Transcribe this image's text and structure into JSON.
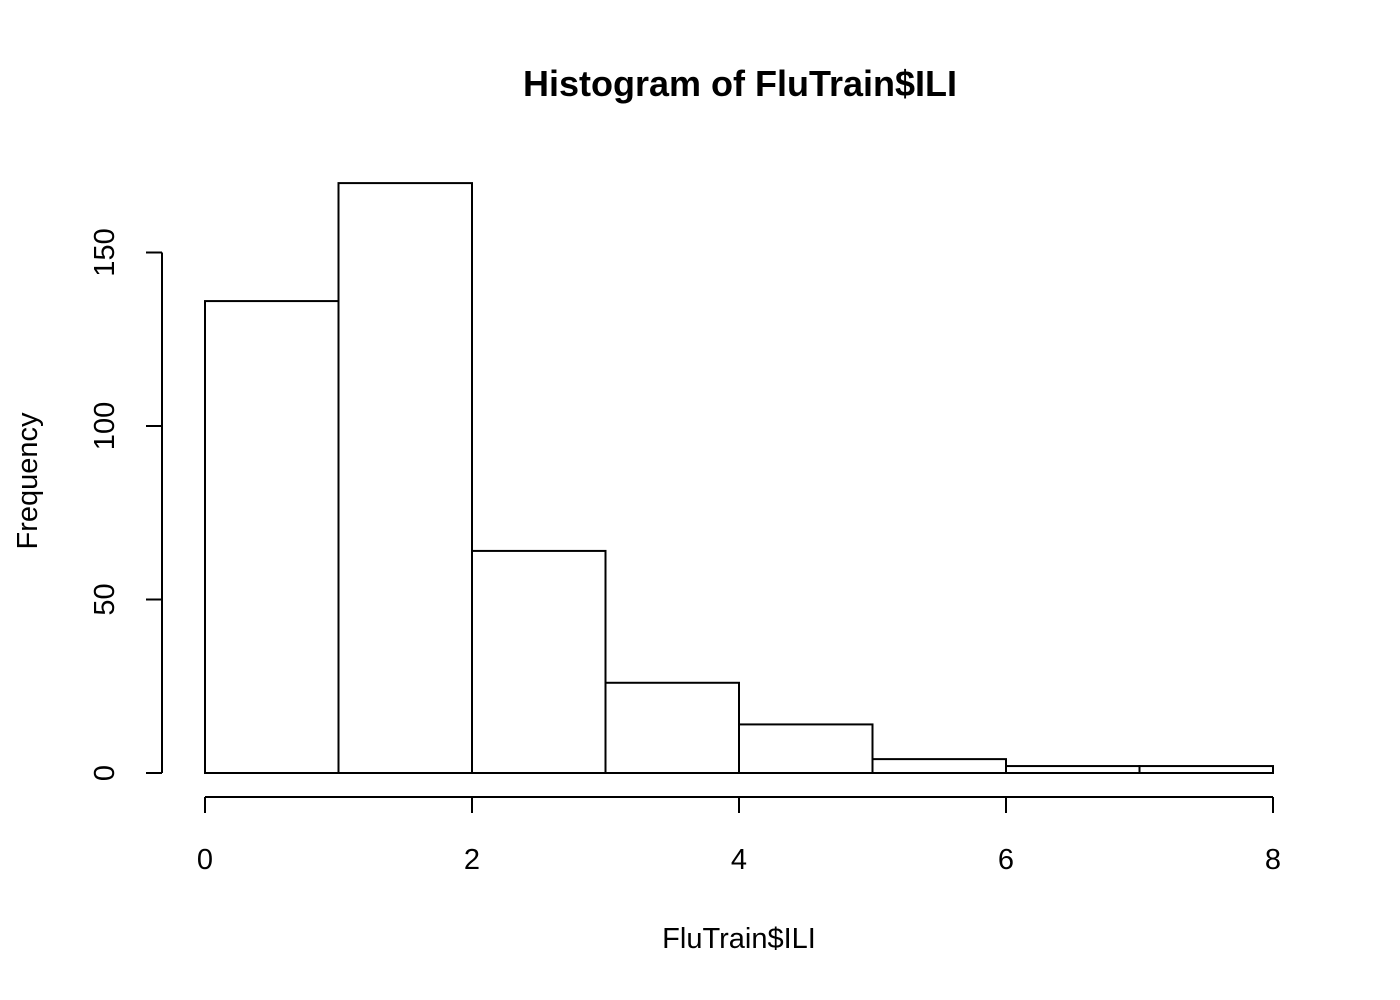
{
  "chart_data": {
    "type": "bar",
    "title": "Histogram of FluTrain$ILI",
    "xlabel": "FluTrain$ILI",
    "ylabel": "Frequency",
    "bins": [
      {
        "start": 0,
        "end": 1,
        "count": 136
      },
      {
        "start": 1,
        "end": 2,
        "count": 170
      },
      {
        "start": 2,
        "end": 3,
        "count": 64
      },
      {
        "start": 3,
        "end": 4,
        "count": 26
      },
      {
        "start": 4,
        "end": 5,
        "count": 14
      },
      {
        "start": 5,
        "end": 6,
        "count": 4
      },
      {
        "start": 6,
        "end": 7,
        "count": 2
      },
      {
        "start": 7,
        "end": 8,
        "count": 2
      }
    ],
    "xlim": [
      0,
      8
    ],
    "ylim": [
      0,
      170
    ],
    "x_ticks": [
      0,
      2,
      4,
      6,
      8
    ],
    "y_ticks": [
      0,
      50,
      100,
      150
    ],
    "grid": false,
    "legend": "none",
    "colors": {
      "bar_fill": "#ffffff",
      "bar_stroke": "#000000"
    }
  }
}
